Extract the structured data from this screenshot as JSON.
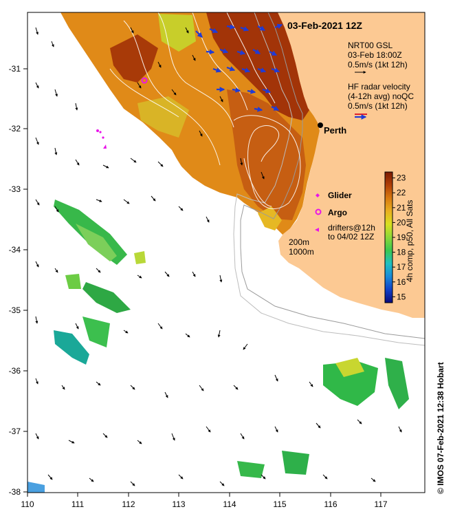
{
  "map": {
    "date_title": "03-Feb-2021 12Z",
    "x_ticks": [
      "110",
      "111",
      "112",
      "113",
      "114",
      "115",
      "116",
      "117"
    ],
    "y_ticks": [
      "-31",
      "-32",
      "-33",
      "-34",
      "-35",
      "-36",
      "-37",
      "-38"
    ],
    "extent": {
      "lon": [
        110,
        117.85
      ],
      "lat": [
        -38,
        -30.18
      ]
    },
    "colors": {
      "land": "#fcc993",
      "ocean": "#ffffff",
      "arrow_model": "#000000",
      "arrow_radar": "#1f3bd6",
      "arrow_radar_alt": "#e0202a",
      "glider": "#e815e8",
      "argo": "#e815e8"
    }
  },
  "legend": {
    "model_title": "NRT00 GSL",
    "model_time": "03-Feb 18:00Z",
    "model_scale": "0.5m/s (1kt 12h)",
    "radar_title": "HF radar velocity",
    "radar_sub": "(4-12h avg) noQC",
    "radar_scale": "0.5m/s (1kt 12h)",
    "city": "Perth",
    "glider": "Glider",
    "argo": "Argo",
    "drifters_line1": "drifters@12h",
    "drifters_line2": "to 04/02 12Z",
    "isobath_200": "200m",
    "isobath_1000": "1000m"
  },
  "colorbar": {
    "ticks": [
      "23",
      "22",
      "21",
      "20",
      "19",
      "18",
      "17",
      "16",
      "15"
    ],
    "range": [
      14.6,
      23.4
    ],
    "label": "4h comp, p50, All Sats",
    "stops": [
      "#0a0a7a",
      "#1040c8",
      "#1a8ad8",
      "#20c0c0",
      "#3ac850",
      "#8cd838",
      "#d8e020",
      "#e8b020",
      "#d87a10",
      "#b04008",
      "#7a1a02"
    ]
  },
  "credit": "© IMOS 07-Feb-2021 12:38 Hobart"
}
